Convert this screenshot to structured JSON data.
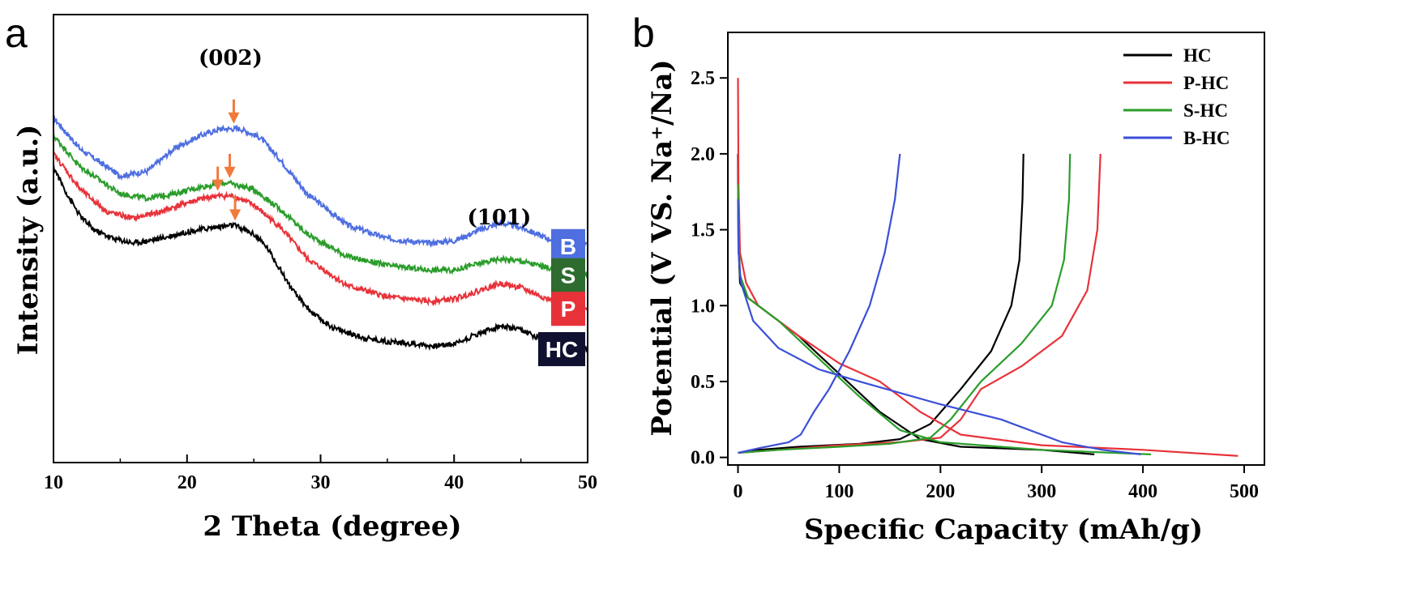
{
  "panels": {
    "a": "a",
    "b": "b"
  },
  "chart_data": [
    {
      "type": "line",
      "panel": "a",
      "xlabel": "2 Theta (degree)",
      "ylabel": "Intensity (a.u.)",
      "xlim": [
        10,
        50
      ],
      "xticks": [
        "10",
        "20",
        "30",
        "40",
        "50"
      ],
      "y_tick_labels": false,
      "annotations": [
        {
          "text": "(002)",
          "x": 23.5
        },
        {
          "text": "(101)",
          "x": 43.5
        }
      ],
      "peak_arrows_color": "#f07a3c",
      "series": [
        {
          "name": "B",
          "color": "#4f6fe0",
          "tag_color": "#4f6fe0",
          "points": [
            [
              10,
              0.77
            ],
            [
              12,
              0.7
            ],
            [
              15,
              0.64
            ],
            [
              17,
              0.65
            ],
            [
              19,
              0.7
            ],
            [
              21,
              0.73
            ],
            [
              22.5,
              0.745
            ],
            [
              24,
              0.745
            ],
            [
              25.5,
              0.725
            ],
            [
              27,
              0.675
            ],
            [
              29,
              0.6
            ],
            [
              32,
              0.53
            ],
            [
              35,
              0.5
            ],
            [
              38,
              0.49
            ],
            [
              40,
              0.495
            ],
            [
              42,
              0.52
            ],
            [
              43.5,
              0.535
            ],
            [
              45,
              0.525
            ],
            [
              47,
              0.5
            ],
            [
              50,
              0.485
            ]
          ]
        },
        {
          "name": "S",
          "color": "#2a9d2a",
          "tag_color": "#2e6b2e",
          "points": [
            [
              10,
              0.73
            ],
            [
              12,
              0.66
            ],
            [
              15,
              0.6
            ],
            [
              17,
              0.59
            ],
            [
              19,
              0.6
            ],
            [
              21,
              0.615
            ],
            [
              23,
              0.625
            ],
            [
              25,
              0.61
            ],
            [
              27,
              0.565
            ],
            [
              29,
              0.51
            ],
            [
              32,
              0.46
            ],
            [
              35,
              0.44
            ],
            [
              38,
              0.43
            ],
            [
              40,
              0.43
            ],
            [
              42,
              0.445
            ],
            [
              43.5,
              0.455
            ],
            [
              45,
              0.45
            ],
            [
              47,
              0.435
            ],
            [
              50,
              0.42
            ]
          ]
        },
        {
          "name": "P",
          "color": "#e8323a",
          "tag_color": "#e8323a",
          "points": [
            [
              10,
              0.69
            ],
            [
              12,
              0.61
            ],
            [
              14,
              0.56
            ],
            [
              16,
              0.545
            ],
            [
              18,
              0.56
            ],
            [
              20,
              0.58
            ],
            [
              22,
              0.595
            ],
            [
              23.5,
              0.595
            ],
            [
              25,
              0.575
            ],
            [
              27,
              0.525
            ],
            [
              29,
              0.455
            ],
            [
              32,
              0.395
            ],
            [
              35,
              0.37
            ],
            [
              38,
              0.36
            ],
            [
              40,
              0.365
            ],
            [
              42,
              0.385
            ],
            [
              43.5,
              0.4
            ],
            [
              45,
              0.39
            ],
            [
              47,
              0.365
            ],
            [
              50,
              0.345
            ]
          ]
        },
        {
          "name": "HC",
          "color": "#000000",
          "tag_color": "#101030",
          "points": [
            [
              10,
              0.66
            ],
            [
              11,
              0.6
            ],
            [
              12,
              0.55
            ],
            [
              13,
              0.52
            ],
            [
              14.5,
              0.5
            ],
            [
              16,
              0.49
            ],
            [
              18,
              0.5
            ],
            [
              20,
              0.515
            ],
            [
              22,
              0.525
            ],
            [
              23.5,
              0.53
            ],
            [
              25,
              0.51
            ],
            [
              26,
              0.48
            ],
            [
              27,
              0.43
            ],
            [
              28,
              0.38
            ],
            [
              29.5,
              0.33
            ],
            [
              31,
              0.3
            ],
            [
              33,
              0.28
            ],
            [
              35,
              0.27
            ],
            [
              37,
              0.265
            ],
            [
              38.5,
              0.26
            ],
            [
              40,
              0.265
            ],
            [
              42,
              0.29
            ],
            [
              43.5,
              0.305
            ],
            [
              45,
              0.295
            ],
            [
              47,
              0.27
            ],
            [
              50,
              0.255
            ]
          ]
        }
      ]
    },
    {
      "type": "line",
      "panel": "b",
      "xlabel": "Specific Capacity (mAh/g)",
      "ylabel": "Potential (V VS. Na⁺/Na)",
      "xlim": [
        -10,
        520
      ],
      "ylim": [
        -0.05,
        2.8
      ],
      "xticks": [
        0,
        100,
        200,
        300,
        400,
        500
      ],
      "yticks": [
        0.0,
        0.5,
        1.0,
        1.5,
        2.0,
        2.5
      ],
      "legend_position": "top-right",
      "series": [
        {
          "name": "HC",
          "color": "#000000",
          "discharge": [
            [
              0,
              2.0
            ],
            [
              0.5,
              1.4
            ],
            [
              2,
              1.15
            ],
            [
              10,
              1.05
            ],
            [
              30,
              0.95
            ],
            [
              60,
              0.8
            ],
            [
              100,
              0.55
            ],
            [
              140,
              0.3
            ],
            [
              180,
              0.12
            ],
            [
              220,
              0.07
            ],
            [
              300,
              0.05
            ],
            [
              352,
              0.02
            ]
          ],
          "charge": [
            [
              0,
              0.03
            ],
            [
              20,
              0.05
            ],
            [
              60,
              0.07
            ],
            [
              120,
              0.09
            ],
            [
              160,
              0.12
            ],
            [
              190,
              0.22
            ],
            [
              220,
              0.45
            ],
            [
              250,
              0.7
            ],
            [
              270,
              1.0
            ],
            [
              278,
              1.3
            ],
            [
              281,
              1.7
            ],
            [
              282,
              2.0
            ]
          ]
        },
        {
          "name": "P-HC",
          "color": "#e8323a",
          "discharge": [
            [
              0,
              2.5
            ],
            [
              0.5,
              1.8
            ],
            [
              2,
              1.35
            ],
            [
              8,
              1.15
            ],
            [
              20,
              1.0
            ],
            [
              60,
              0.8
            ],
            [
              100,
              0.62
            ],
            [
              140,
              0.5
            ],
            [
              180,
              0.3
            ],
            [
              220,
              0.15
            ],
            [
              300,
              0.08
            ],
            [
              400,
              0.05
            ],
            [
              494,
              0.01
            ]
          ],
          "charge": [
            [
              0,
              0.03
            ],
            [
              40,
              0.05
            ],
            [
              100,
              0.08
            ],
            [
              160,
              0.1
            ],
            [
              200,
              0.13
            ],
            [
              220,
              0.25
            ],
            [
              240,
              0.45
            ],
            [
              280,
              0.6
            ],
            [
              320,
              0.8
            ],
            [
              345,
              1.1
            ],
            [
              355,
              1.5
            ],
            [
              358,
              2.0
            ]
          ]
        },
        {
          "name": "S-HC",
          "color": "#2a9d2a",
          "discharge": [
            [
              0,
              1.8
            ],
            [
              0.5,
              1.5
            ],
            [
              2,
              1.2
            ],
            [
              10,
              1.05
            ],
            [
              40,
              0.9
            ],
            [
              80,
              0.65
            ],
            [
              120,
              0.4
            ],
            [
              160,
              0.18
            ],
            [
              200,
              0.1
            ],
            [
              300,
              0.05
            ],
            [
              408,
              0.02
            ]
          ],
          "charge": [
            [
              0,
              0.03
            ],
            [
              40,
              0.05
            ],
            [
              100,
              0.07
            ],
            [
              150,
              0.09
            ],
            [
              190,
              0.13
            ],
            [
              210,
              0.25
            ],
            [
              240,
              0.5
            ],
            [
              280,
              0.75
            ],
            [
              310,
              1.0
            ],
            [
              322,
              1.3
            ],
            [
              327,
              1.7
            ],
            [
              328,
              2.0
            ]
          ]
        },
        {
          "name": "B-HC",
          "color": "#3b4fd8",
          "discharge": [
            [
              0,
              1.7
            ],
            [
              0.5,
              1.35
            ],
            [
              3,
              1.15
            ],
            [
              15,
              0.9
            ],
            [
              40,
              0.72
            ],
            [
              80,
              0.58
            ],
            [
              120,
              0.5
            ],
            [
              200,
              0.35
            ],
            [
              260,
              0.25
            ],
            [
              320,
              0.1
            ],
            [
              360,
              0.05
            ],
            [
              398,
              0.02
            ]
          ],
          "charge": [
            [
              0,
              0.03
            ],
            [
              20,
              0.06
            ],
            [
              50,
              0.1
            ],
            [
              62,
              0.15
            ],
            [
              75,
              0.3
            ],
            [
              90,
              0.45
            ],
            [
              110,
              0.7
            ],
            [
              130,
              1.0
            ],
            [
              145,
              1.35
            ],
            [
              155,
              1.7
            ],
            [
              160,
              2.0
            ]
          ]
        }
      ]
    }
  ]
}
